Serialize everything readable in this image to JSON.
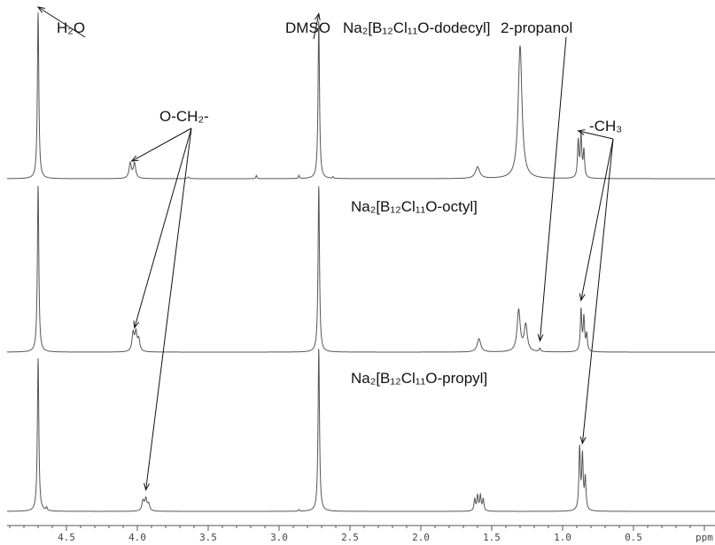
{
  "chart_data": {
    "type": "line",
    "x_axis": {
      "reversed": true,
      "xlim": [
        4.92,
        -0.05
      ],
      "tick_labels": [
        "4.5",
        "4.0",
        "3.5",
        "3.0",
        "2.5",
        "2.0",
        "1.5",
        "1.0",
        "0.5"
      ],
      "unit_label": "ppm"
    },
    "labels": {
      "h2o": "H₂O",
      "dmso": "DMSO",
      "ch2": "O-CH₂-",
      "ch3": "-CH₃",
      "propanol": "2-propanol",
      "dodecyl": "Na₂[B₁₂Cl₁₁O-dodecyl]",
      "octyl": "Na₂[B₁₂Cl₁₁O-octyl]",
      "propyl": "Na₂[B₁₂Cl₁₁O-propyl]"
    },
    "series": [
      {
        "name": "Na₂[B₁₂Cl₁₁O-dodecyl]",
        "peaks": [
          {
            "ppm": 4.7,
            "height": 1.0,
            "width": 0.006
          },
          {
            "ppm": 4.05,
            "height": 0.09,
            "width": 0.01
          },
          {
            "ppm": 4.02,
            "height": 0.09,
            "width": 0.01
          },
          {
            "ppm": 3.64,
            "height": 0.01,
            "width": 0.008
          },
          {
            "ppm": 3.16,
            "height": 0.02,
            "width": 0.004
          },
          {
            "ppm": 2.86,
            "height": 0.02,
            "width": 0.004
          },
          {
            "ppm": 2.72,
            "height": 0.95,
            "width": 0.006
          },
          {
            "ppm": 2.62,
            "height": 0.01,
            "width": 0.004
          },
          {
            "ppm": 1.6,
            "height": 0.07,
            "width": 0.018
          },
          {
            "ppm": 1.3,
            "height": 0.8,
            "width": 0.016
          },
          {
            "ppm": 0.89,
            "height": 0.22,
            "width": 0.006
          },
          {
            "ppm": 0.87,
            "height": 0.25,
            "width": 0.006
          },
          {
            "ppm": 0.85,
            "height": 0.16,
            "width": 0.006
          }
        ]
      },
      {
        "name": "Na₂[B₁₂Cl₁₁O-octyl]",
        "peaks": [
          {
            "ppm": 4.7,
            "height": 1.0,
            "width": 0.006
          },
          {
            "ppm": 4.03,
            "height": 0.11,
            "width": 0.009
          },
          {
            "ppm": 4.01,
            "height": 0.11,
            "width": 0.009
          },
          {
            "ppm": 3.99,
            "height": 0.07,
            "width": 0.009
          },
          {
            "ppm": 2.72,
            "height": 1.0,
            "width": 0.006
          },
          {
            "ppm": 1.59,
            "height": 0.08,
            "width": 0.015
          },
          {
            "ppm": 1.31,
            "height": 0.25,
            "width": 0.013
          },
          {
            "ppm": 1.26,
            "height": 0.16,
            "width": 0.013
          },
          {
            "ppm": 1.16,
            "height": 0.02,
            "width": 0.006
          },
          {
            "ppm": 0.87,
            "height": 0.25,
            "width": 0.006
          },
          {
            "ppm": 0.85,
            "height": 0.2,
            "width": 0.006
          },
          {
            "ppm": 0.83,
            "height": 0.1,
            "width": 0.006
          }
        ]
      },
      {
        "name": "Na₂[B₁₂Cl₁₁O-propyl]",
        "peaks": [
          {
            "ppm": 4.7,
            "height": 0.92,
            "width": 0.006
          },
          {
            "ppm": 4.64,
            "height": 0.02,
            "width": 0.005
          },
          {
            "ppm": 3.96,
            "height": 0.06,
            "width": 0.009
          },
          {
            "ppm": 3.94,
            "height": 0.07,
            "width": 0.009
          },
          {
            "ppm": 3.92,
            "height": 0.04,
            "width": 0.009
          },
          {
            "ppm": 2.86,
            "height": 0.01,
            "width": 0.004
          },
          {
            "ppm": 2.72,
            "height": 0.98,
            "width": 0.006
          },
          {
            "ppm": 1.62,
            "height": 0.07,
            "width": 0.006
          },
          {
            "ppm": 1.6,
            "height": 0.09,
            "width": 0.006
          },
          {
            "ppm": 1.58,
            "height": 0.09,
            "width": 0.006
          },
          {
            "ppm": 1.56,
            "height": 0.07,
            "width": 0.006
          },
          {
            "ppm": 0.88,
            "height": 0.37,
            "width": 0.006
          },
          {
            "ppm": 0.86,
            "height": 0.32,
            "width": 0.006
          },
          {
            "ppm": 0.84,
            "height": 0.19,
            "width": 0.006
          }
        ]
      }
    ],
    "annotations": [
      {
        "label": "h2o",
        "targets": [
          [
            4.7,
            0
          ]
        ]
      },
      {
        "label": "dmso",
        "targets": [
          [
            2.72,
            0
          ]
        ]
      },
      {
        "label": "ch2",
        "targets": [
          [
            4.04,
            0
          ],
          [
            4.02,
            1
          ],
          [
            3.94,
            2
          ]
        ]
      },
      {
        "label": "propanol",
        "targets": [
          [
            1.16,
            1
          ]
        ]
      },
      {
        "label": "ch3",
        "targets": [
          [
            0.89,
            0
          ],
          [
            0.87,
            1
          ],
          [
            0.86,
            2
          ]
        ]
      }
    ]
  }
}
